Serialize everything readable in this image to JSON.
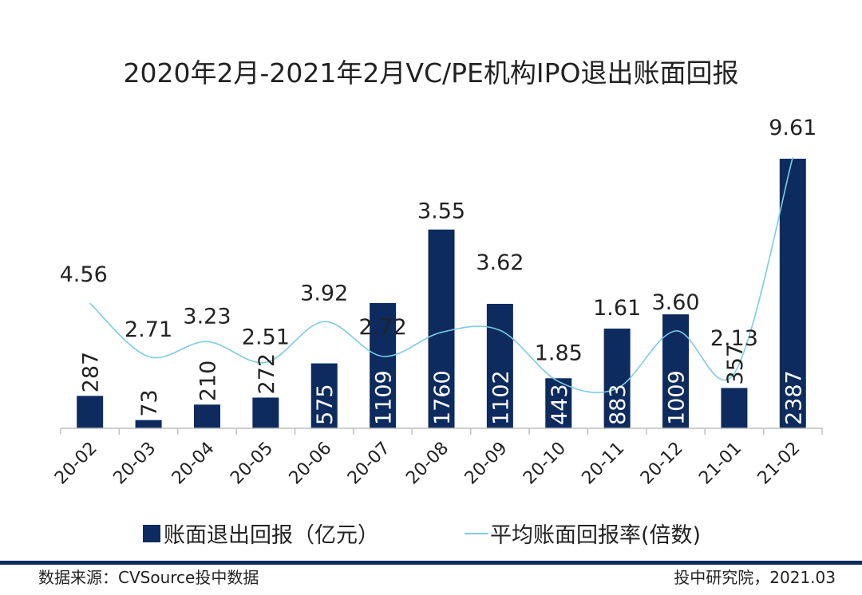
{
  "chart_data": {
    "type": "bar",
    "title": "2020年2月-2021年2月VC/PE机构IPO退出账面回报",
    "categories": [
      "20-02",
      "20-03",
      "20-04",
      "20-05",
      "20-06",
      "20-07",
      "20-08",
      "20-09",
      "20-10",
      "20-11",
      "20-12",
      "21-01",
      "21-02"
    ],
    "series": [
      {
        "name": "账面退出回报（亿元）",
        "type": "bar",
        "axis": "left",
        "values": [
          287,
          73,
          210,
          272,
          575,
          1109,
          1760,
          1102,
          443,
          883,
          1009,
          357,
          2387
        ],
        "labels": [
          "287",
          "73",
          "210",
          "272",
          "575",
          "1109",
          "1760",
          "1102",
          "443",
          "883",
          "1009",
          "357",
          "2387"
        ]
      },
      {
        "name": "平均账面回报率(倍数)",
        "type": "line",
        "axis": "right",
        "values": [
          4.56,
          2.71,
          3.23,
          2.51,
          3.92,
          2.72,
          3.55,
          3.62,
          1.85,
          1.61,
          3.6,
          2.13,
          9.61
        ],
        "labels": [
          "4.56",
          "2.71",
          "3.23",
          "2.51",
          "3.92",
          "2.72",
          "3.55",
          "3.62",
          "1.85",
          "1.61",
          "3.60",
          "2.13",
          "9.61"
        ]
      }
    ],
    "ylim_left": [
      0,
      2500
    ],
    "ylim_right": [
      0,
      10
    ],
    "xlabel": "",
    "ylabel": "",
    "legend_position": "bottom"
  },
  "colors": {
    "bar": "#0d2b5e",
    "line": "#7ccbe5",
    "axis": "#bfbfbf",
    "footer_rule": "#0d2b5e"
  },
  "footer": {
    "source": "数据来源：CVSource投中数据",
    "credit": "投中研究院，2021.03"
  }
}
